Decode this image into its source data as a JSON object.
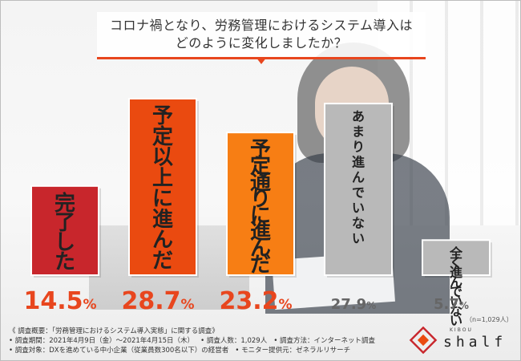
{
  "title": "コロナ禍となり、労務管理におけるシステム導入は\nどのように変化しましたか？",
  "chart_data": {
    "type": "bar",
    "categories": [
      "完了した",
      "予定以上に進んだ",
      "予定通りに進んだ",
      "あまり進んでいない",
      "全く進んでいない"
    ],
    "values": [
      14.5,
      28.7,
      23.2,
      27.9,
      5.7
    ],
    "value_labels": [
      {
        "num": "14.5",
        "unit": "%"
      },
      {
        "num": "28.7",
        "unit": "%"
      },
      {
        "num": "23.2",
        "unit": "%"
      },
      {
        "num": "27.9",
        "unit": "%"
      },
      {
        "num": "5.7",
        "unit": "%"
      }
    ],
    "colors": [
      "#c8262c",
      "#ea4a10",
      "#f77e14",
      "#b9b9b9",
      "#b9b9b9"
    ],
    "value_colors": [
      "#e8461e",
      "#e8461e",
      "#e8461e",
      "#666666",
      "#666666"
    ],
    "label_colors": [
      "#222222",
      "#222222",
      "#222222",
      "#222222",
      "#222222"
    ],
    "ylim": [
      0,
      30
    ]
  },
  "note": "（n=1,029人）",
  "footer": {
    "line1": "《 調査概要：「労務管理におけるシステム導入実態」に関する調査》",
    "line2a": "• 調査期間：2021年4月9日（金）〜2021年4月15日（木）",
    "line2b": "• 調査人数：1,029人",
    "line2c": "• 調査方法：インターネット調査",
    "line3a": "• 調査対象：DXを進めている中小企業（従業員数300名以下）の経営者",
    "line3b": "• モニター提供元：ゼネラルリサーチ"
  },
  "logo": {
    "sub": "KIBOU",
    "main": "shalf"
  }
}
